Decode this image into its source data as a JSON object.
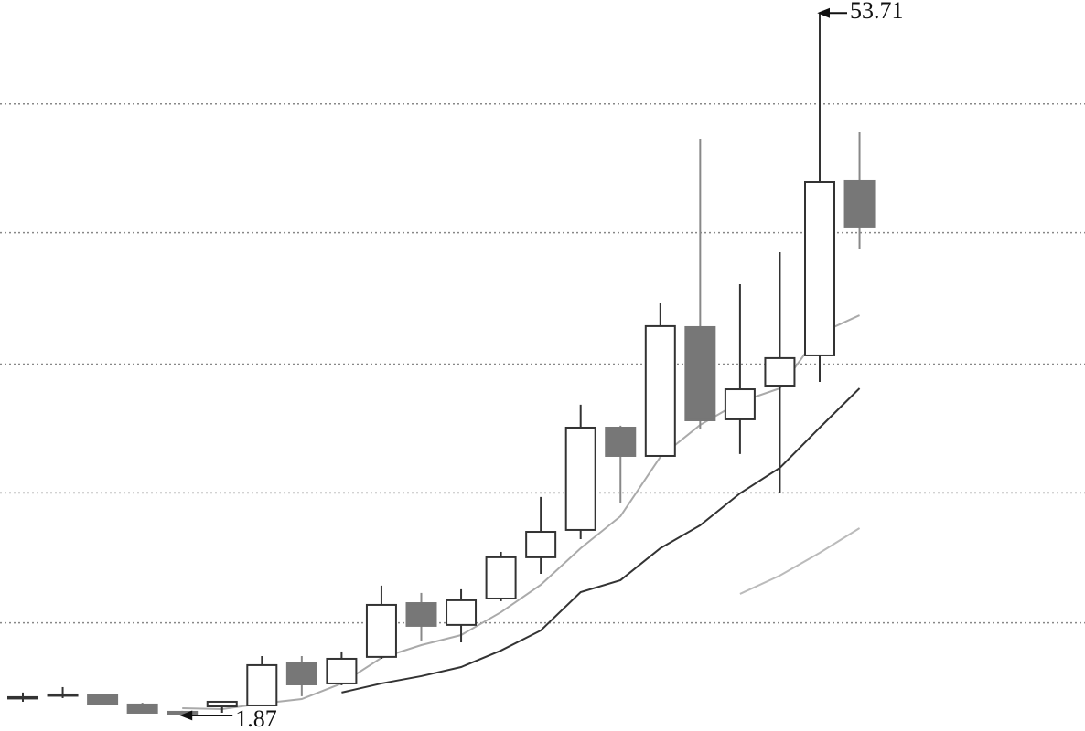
{
  "chart_data": {
    "type": "candlestick",
    "ylim": [
      0.72,
      54.67
    ],
    "yticks": [
      8.7,
      18.3,
      27.8,
      37.5,
      47.0
    ],
    "grid": true,
    "up_color": "#ffffff",
    "down_color": "#777777",
    "edge_color": "#333333",
    "open": [
      3.22,
      3.35,
      3.35,
      2.68,
      2.14,
      2.54,
      2.61,
      5.71,
      4.23,
      6.19,
      10.16,
      8.55,
      10.5,
      13.54,
      15.56,
      23.11,
      21.02,
      30.53,
      23.72,
      26.21,
      28.44,
      41.32
    ],
    "close": [
      3.22,
      3.42,
      2.68,
      2.07,
      2.0,
      2.88,
      5.58,
      4.16,
      6.05,
      10.03,
      8.48,
      10.37,
      13.54,
      15.42,
      23.11,
      21.02,
      30.6,
      23.65,
      25.94,
      28.24,
      41.25,
      37.95
    ],
    "high": [
      3.56,
      3.96,
      3.42,
      2.81,
      2.21,
      2.81,
      6.25,
      6.25,
      6.59,
      11.45,
      10.91,
      11.18,
      13.94,
      17.99,
      24.8,
      23.25,
      32.28,
      44.42,
      33.7,
      36.06,
      53.71,
      44.89
    ],
    "low": [
      2.88,
      3.15,
      2.68,
      2.07,
      1.87,
      2.07,
      2.61,
      3.29,
      4.1,
      6.05,
      7.4,
      7.26,
      10.3,
      12.32,
      14.88,
      17.58,
      20.95,
      22.98,
      21.16,
      18.26,
      26.48,
      36.33
    ],
    "lines": [
      {
        "color": "#aaaaaa",
        "values": [
          null,
          null,
          null,
          null,
          2.41,
          2.34,
          2.75,
          3.08,
          4.23,
          6.12,
          7.06,
          7.8,
          9.49,
          11.51,
          14.21,
          16.57,
          20.95,
          23.31,
          25.0,
          26.01,
          30.06,
          31.4
        ]
      },
      {
        "color": "#333333",
        "values": [
          null,
          null,
          null,
          null,
          null,
          null,
          null,
          null,
          3.56,
          4.23,
          4.77,
          5.44,
          6.66,
          8.14,
          10.97,
          11.85,
          14.21,
          15.9,
          18.26,
          20.14,
          23.11,
          26.01
        ]
      },
      {
        "color": "#bbbbbb",
        "values": [
          null,
          null,
          null,
          null,
          null,
          null,
          null,
          null,
          null,
          null,
          null,
          null,
          null,
          null,
          null,
          null,
          null,
          null,
          10.84,
          12.19,
          13.87,
          15.69
        ]
      }
    ],
    "max_label": 53.71,
    "min_label": 1.87
  }
}
